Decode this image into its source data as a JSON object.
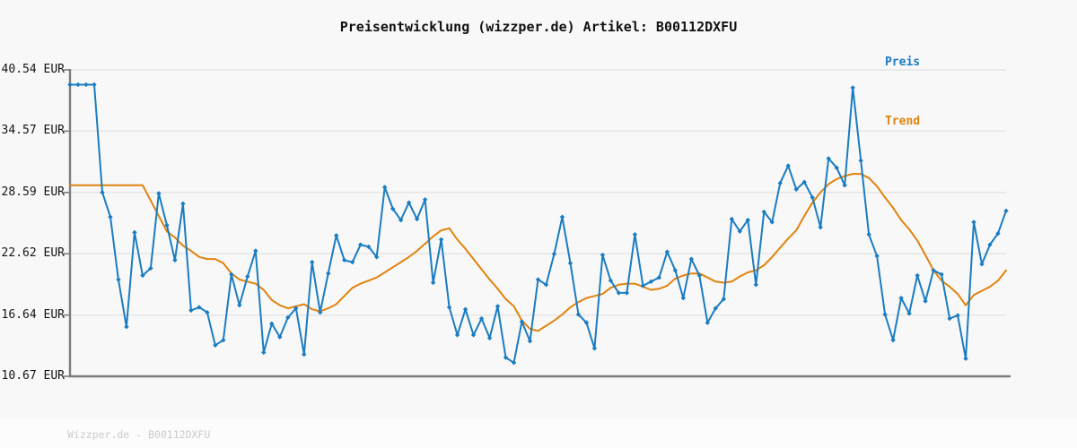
{
  "header": {
    "title": "Preisentwicklung (wizzper.de) Artikel: B00112DXFU"
  },
  "legend": {
    "items": [
      {
        "label": "Preis",
        "color": "#1a7cc2"
      },
      {
        "label": "Trend",
        "color": "#e1830e"
      }
    ]
  },
  "y_axis": {
    "labels": [
      "40.54 EUR",
      "34.57 EUR",
      "28.59 EUR",
      "22.62 EUR",
      "16.64 EUR",
      "10.67 EUR"
    ]
  },
  "footer": {
    "text": "Wizzper.de - B00112DXFU"
  },
  "colors": {
    "background": "#f8f8f8",
    "footer_band": "#fcfcfc",
    "grid": "#e5e5e5",
    "axis": "#7d7d7d",
    "preis": "#1a7cc2",
    "trend": "#e1830e",
    "title_text": "#111111",
    "footer_text": "#cbcbcb"
  },
  "chart_data": {
    "type": "line",
    "title": "Preisentwicklung (wizzper.de) Artikel: B00112DXFU",
    "xlabel": "",
    "ylabel": "EUR",
    "ylim": [
      10.67,
      40.54
    ],
    "y_ticks": [
      40.54,
      34.57,
      28.59,
      22.62,
      16.64,
      10.67
    ],
    "grid": true,
    "legend_position": "top-right",
    "x_unit": "observation index (time series, no x labels shown)",
    "series": [
      {
        "name": "Preis",
        "color": "#1a7cc2",
        "marker": "diamond",
        "values": [
          39.1,
          39.1,
          39.1,
          39.1,
          28.6,
          26.2,
          20.1,
          15.5,
          24.7,
          20.5,
          21.2,
          28.5,
          25.4,
          22.0,
          27.5,
          17.1,
          17.4,
          16.9,
          13.7,
          14.2,
          20.6,
          17.6,
          20.4,
          22.9,
          13.0,
          15.8,
          14.5,
          16.4,
          17.3,
          12.8,
          21.8,
          16.9,
          20.7,
          24.4,
          22.0,
          21.8,
          23.5,
          23.3,
          22.3,
          29.1,
          27.0,
          25.9,
          27.6,
          26.0,
          27.9,
          19.8,
          24.0,
          17.4,
          14.7,
          17.2,
          14.7,
          16.3,
          14.4,
          17.5,
          12.5,
          12.0,
          16.0,
          14.1,
          20.1,
          19.6,
          22.6,
          26.2,
          21.7,
          16.7,
          15.9,
          13.4,
          22.5,
          20.0,
          18.8,
          18.8,
          24.5,
          19.5,
          19.9,
          20.3,
          22.8,
          21.0,
          18.3,
          22.1,
          20.5,
          15.9,
          17.3,
          18.2,
          26.0,
          24.8,
          25.9,
          19.6,
          26.7,
          25.7,
          29.5,
          31.2,
          28.9,
          29.6,
          28.1,
          25.2,
          31.9,
          31.0,
          29.3,
          38.8,
          31.7,
          24.5,
          22.4,
          16.7,
          14.2,
          18.3,
          16.8,
          20.5,
          18.0,
          21.0,
          20.6,
          16.3,
          16.6,
          12.4,
          25.7,
          21.6,
          23.5,
          24.6,
          26.8
        ]
      },
      {
        "name": "Trend",
        "color": "#e1830e",
        "marker": "none",
        "values": [
          29.3,
          29.3,
          29.3,
          29.3,
          29.3,
          29.3,
          29.3,
          29.3,
          29.3,
          29.3,
          27.8,
          26.3,
          24.8,
          24.2,
          23.4,
          22.9,
          22.3,
          22.1,
          22.1,
          21.7,
          20.7,
          20.1,
          19.9,
          19.7,
          19.1,
          18.1,
          17.6,
          17.3,
          17.5,
          17.7,
          17.2,
          17.0,
          17.3,
          17.7,
          18.5,
          19.3,
          19.7,
          20.0,
          20.3,
          20.8,
          21.3,
          21.8,
          22.3,
          22.9,
          23.6,
          24.3,
          24.9,
          25.1,
          24.0,
          23.1,
          22.1,
          21.1,
          20.1,
          19.2,
          18.2,
          17.5,
          16.1,
          15.3,
          15.1,
          15.6,
          16.1,
          16.7,
          17.4,
          17.9,
          18.3,
          18.5,
          18.7,
          19.3,
          19.6,
          19.7,
          19.7,
          19.4,
          19.1,
          19.2,
          19.5,
          20.2,
          20.5,
          20.7,
          20.7,
          20.3,
          19.9,
          19.8,
          19.9,
          20.4,
          20.8,
          21.0,
          21.5,
          22.3,
          23.2,
          24.1,
          24.9,
          26.3,
          27.6,
          28.6,
          29.4,
          29.9,
          30.2,
          30.4,
          30.4,
          30.0,
          29.2,
          28.1,
          27.1,
          25.9,
          25.0,
          23.9,
          22.5,
          21.0,
          20.0,
          19.4,
          18.7,
          17.6,
          18.6,
          19.0,
          19.4,
          20.0,
          21.0
        ]
      }
    ]
  }
}
